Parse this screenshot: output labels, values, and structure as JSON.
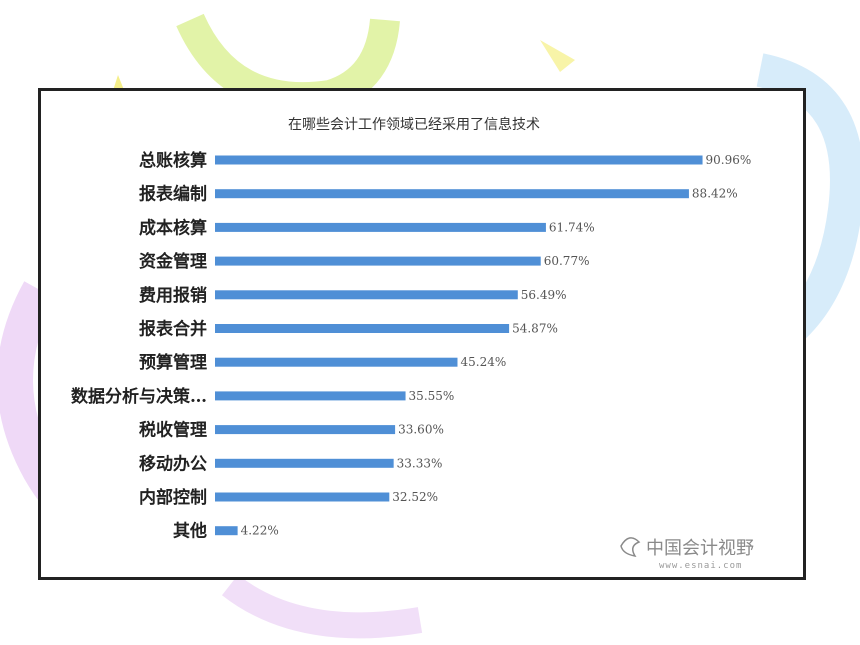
{
  "chart_data": {
    "type": "bar",
    "orientation": "horizontal",
    "title": "在哪些会计工作领域已经采用了信息技术",
    "categories": [
      "总账核算",
      "报表编制",
      "成本核算",
      "资金管理",
      "费用报销",
      "报表合并",
      "预算管理",
      "数据分析与决策…",
      "税收管理",
      "移动办公",
      "内部控制",
      "其他"
    ],
    "values": [
      90.96,
      88.42,
      61.74,
      60.77,
      56.49,
      54.87,
      45.24,
      35.55,
      33.6,
      33.33,
      32.52,
      4.22
    ],
    "value_labels": [
      "90.96%",
      "88.42%",
      "61.74%",
      "60.77%",
      "56.49%",
      "54.87%",
      "45.24%",
      "35.55%",
      "33.60%",
      "33.33%",
      "32.52%",
      "4.22%"
    ],
    "xlim": [
      0,
      100
    ],
    "grid": false,
    "legend": "none",
    "colors": {
      "bar": "#4f8fd6"
    }
  },
  "watermark": {
    "logo_text": "中国会计视野",
    "logo_url": "www.esnai.com"
  }
}
